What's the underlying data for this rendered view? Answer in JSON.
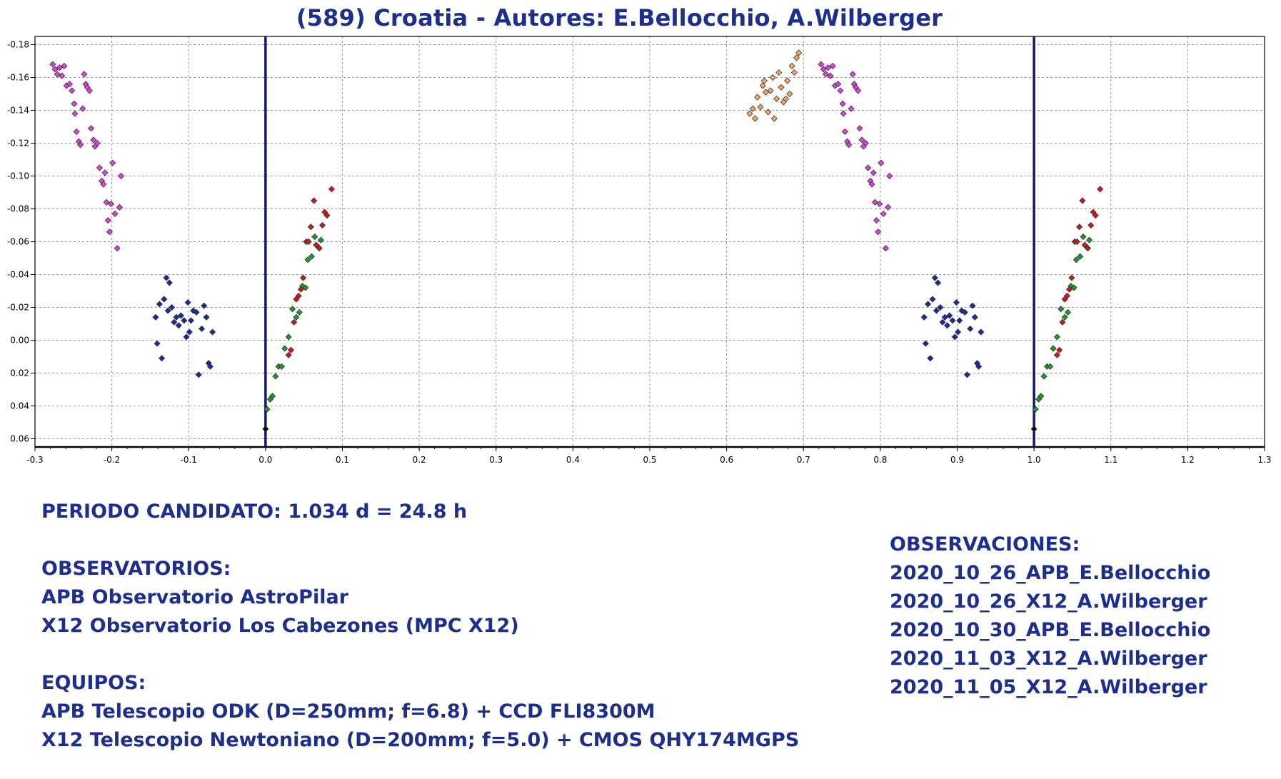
{
  "title": "(589) Croatia - Autores: E.Bellocchio, A.Wilberger",
  "colors": {
    "text": "#1d2e8c",
    "grid": "#999999",
    "phase_line": "#101a6e",
    "magenta": "#e040e0",
    "blue": "#1a2a9c",
    "green": "#1f9a2a",
    "red": "#d01818",
    "orange": "#f0a868"
  },
  "chart_data": {
    "type": "scatter",
    "title": "",
    "xlabel": "",
    "ylabel": "",
    "xlim": [
      -0.3,
      1.3
    ],
    "ylim": [
      0.065,
      -0.185
    ],
    "y_inverted": true,
    "grid": true,
    "x_ticks": [
      "-0.3",
      "-0.2",
      "-0.1",
      "0.0",
      "0.1",
      "0.2",
      "0.3",
      "0.4",
      "0.5",
      "0.6",
      "0.7",
      "0.8",
      "0.9",
      "1.0",
      "1.1",
      "1.2",
      "1.3"
    ],
    "y_ticks": [
      "-0.18",
      "-0.16",
      "-0.14",
      "-0.12",
      "-0.10",
      "-0.08",
      "-0.06",
      "-0.04",
      "-0.02",
      "0.00",
      "0.02",
      "0.04",
      "0.06"
    ],
    "phase_markers": [
      0.0,
      1.0
    ],
    "series": [
      {
        "color": "magenta",
        "points": [
          [
            -0.277,
            -0.168
          ],
          [
            -0.274,
            -0.165
          ],
          [
            -0.271,
            -0.162
          ],
          [
            -0.268,
            -0.166
          ],
          [
            -0.265,
            -0.161
          ],
          [
            -0.262,
            -0.167
          ],
          [
            -0.259,
            -0.155
          ],
          [
            -0.255,
            -0.156
          ],
          [
            -0.252,
            -0.152
          ],
          [
            -0.249,
            -0.144
          ],
          [
            -0.248,
            -0.138
          ],
          [
            -0.246,
            -0.127
          ],
          [
            -0.243,
            -0.121
          ],
          [
            -0.241,
            -0.119
          ],
          [
            -0.238,
            -0.141
          ],
          [
            -0.236,
            -0.162
          ],
          [
            -0.234,
            -0.156
          ],
          [
            -0.232,
            -0.154
          ],
          [
            -0.229,
            -0.152
          ],
          [
            -0.227,
            -0.129
          ],
          [
            -0.224,
            -0.122
          ],
          [
            -0.222,
            -0.118
          ],
          [
            -0.219,
            -0.12
          ],
          [
            -0.216,
            -0.105
          ],
          [
            -0.213,
            -0.097
          ],
          [
            -0.211,
            -0.095
          ],
          [
            -0.209,
            -0.102
          ],
          [
            -0.207,
            -0.084
          ],
          [
            -0.205,
            -0.073
          ],
          [
            -0.203,
            -0.066
          ],
          [
            -0.201,
            -0.083
          ],
          [
            -0.199,
            -0.108
          ],
          [
            -0.196,
            -0.077
          ],
          [
            -0.193,
            -0.056
          ],
          [
            -0.19,
            -0.081
          ],
          [
            -0.188,
            -0.1
          ]
        ]
      },
      {
        "color": "blue",
        "points": [
          [
            -0.143,
            -0.014
          ],
          [
            -0.141,
            0.002
          ],
          [
            -0.138,
            -0.022
          ],
          [
            -0.135,
            0.011
          ],
          [
            -0.132,
            -0.025
          ],
          [
            -0.129,
            -0.038
          ],
          [
            -0.127,
            -0.018
          ],
          [
            -0.125,
            -0.035
          ],
          [
            -0.122,
            -0.02
          ],
          [
            -0.119,
            -0.011
          ],
          [
            -0.116,
            -0.014
          ],
          [
            -0.113,
            -0.009
          ],
          [
            -0.11,
            -0.015
          ],
          [
            -0.106,
            -0.012
          ],
          [
            -0.103,
            -0.002
          ],
          [
            -0.101,
            -0.023
          ],
          [
            -0.099,
            -0.005
          ],
          [
            -0.097,
            -0.012
          ],
          [
            -0.094,
            -0.018
          ],
          [
            -0.09,
            -0.017
          ],
          [
            -0.087,
            0.021
          ],
          [
            -0.083,
            -0.007
          ],
          [
            -0.08,
            -0.021
          ],
          [
            -0.077,
            -0.014
          ],
          [
            -0.074,
            0.014
          ],
          [
            -0.072,
            0.016
          ],
          [
            -0.069,
            -0.005
          ]
        ]
      },
      {
        "color": "green",
        "points": [
          [
            0.002,
            0.042
          ],
          [
            0.006,
            0.036
          ],
          [
            0.009,
            0.034
          ],
          [
            0.013,
            0.022
          ],
          [
            0.017,
            0.016
          ],
          [
            0.021,
            0.016
          ],
          [
            0.025,
            0.005
          ],
          [
            0.03,
            -0.002
          ],
          [
            0.035,
            -0.019
          ],
          [
            0.04,
            -0.014
          ],
          [
            0.044,
            -0.017
          ],
          [
            0.048,
            -0.033
          ],
          [
            0.052,
            -0.032
          ],
          [
            0.055,
            -0.049
          ],
          [
            0.06,
            -0.051
          ],
          [
            0.064,
            -0.063
          ],
          [
            0.068,
            -0.057
          ],
          [
            0.072,
            -0.061
          ]
        ]
      },
      {
        "color": "red",
        "points": [
          [
            0.03,
            0.009
          ],
          [
            0.033,
            0.006
          ],
          [
            0.037,
            -0.011
          ],
          [
            0.04,
            -0.025
          ],
          [
            0.043,
            -0.027
          ],
          [
            0.046,
            -0.031
          ],
          [
            0.049,
            -0.038
          ],
          [
            0.053,
            -0.06
          ],
          [
            0.056,
            -0.06
          ],
          [
            0.059,
            -0.069
          ],
          [
            0.063,
            -0.085
          ],
          [
            0.066,
            -0.058
          ],
          [
            0.07,
            -0.056
          ],
          [
            0.074,
            -0.07
          ],
          [
            0.077,
            -0.078
          ],
          [
            0.08,
            -0.076
          ],
          [
            0.086,
            -0.092
          ]
        ]
      },
      {
        "color": "black",
        "points": [
          [
            0.0,
            0.054
          ]
        ]
      },
      {
        "color": "orange",
        "points": [
          [
            0.63,
            -0.138
          ],
          [
            0.634,
            -0.141
          ],
          [
            0.637,
            -0.135
          ],
          [
            0.64,
            -0.148
          ],
          [
            0.644,
            -0.142
          ],
          [
            0.647,
            -0.155
          ],
          [
            0.649,
            -0.158
          ],
          [
            0.651,
            -0.151
          ],
          [
            0.654,
            -0.139
          ],
          [
            0.657,
            -0.152
          ],
          [
            0.66,
            -0.16
          ],
          [
            0.662,
            -0.135
          ],
          [
            0.665,
            -0.147
          ],
          [
            0.668,
            -0.163
          ],
          [
            0.671,
            -0.154
          ],
          [
            0.674,
            -0.145
          ],
          [
            0.677,
            -0.147
          ],
          [
            0.679,
            -0.158
          ],
          [
            0.682,
            -0.15
          ],
          [
            0.685,
            -0.167
          ],
          [
            0.688,
            -0.163
          ],
          [
            0.691,
            -0.172
          ],
          [
            0.694,
            -0.175
          ]
        ]
      },
      {
        "color": "magenta",
        "points": [
          [
            0.723,
            -0.168
          ],
          [
            0.726,
            -0.165
          ],
          [
            0.729,
            -0.162
          ],
          [
            0.732,
            -0.166
          ],
          [
            0.735,
            -0.161
          ],
          [
            0.738,
            -0.167
          ],
          [
            0.741,
            -0.155
          ],
          [
            0.745,
            -0.156
          ],
          [
            0.748,
            -0.152
          ],
          [
            0.751,
            -0.144
          ],
          [
            0.752,
            -0.138
          ],
          [
            0.754,
            -0.127
          ],
          [
            0.757,
            -0.121
          ],
          [
            0.759,
            -0.119
          ],
          [
            0.762,
            -0.141
          ],
          [
            0.764,
            -0.162
          ],
          [
            0.766,
            -0.156
          ],
          [
            0.768,
            -0.154
          ],
          [
            0.771,
            -0.152
          ],
          [
            0.773,
            -0.129
          ],
          [
            0.776,
            -0.122
          ],
          [
            0.778,
            -0.118
          ],
          [
            0.781,
            -0.12
          ],
          [
            0.784,
            -0.105
          ],
          [
            0.787,
            -0.097
          ],
          [
            0.789,
            -0.095
          ],
          [
            0.791,
            -0.102
          ],
          [
            0.793,
            -0.084
          ],
          [
            0.795,
            -0.073
          ],
          [
            0.797,
            -0.066
          ],
          [
            0.799,
            -0.083
          ],
          [
            0.801,
            -0.108
          ],
          [
            0.804,
            -0.077
          ],
          [
            0.807,
            -0.056
          ],
          [
            0.81,
            -0.081
          ],
          [
            0.812,
            -0.1
          ]
        ]
      },
      {
        "color": "blue",
        "points": [
          [
            0.857,
            -0.014
          ],
          [
            0.859,
            0.002
          ],
          [
            0.862,
            -0.022
          ],
          [
            0.865,
            0.011
          ],
          [
            0.868,
            -0.025
          ],
          [
            0.871,
            -0.038
          ],
          [
            0.873,
            -0.018
          ],
          [
            0.875,
            -0.035
          ],
          [
            0.878,
            -0.02
          ],
          [
            0.881,
            -0.011
          ],
          [
            0.884,
            -0.014
          ],
          [
            0.887,
            -0.009
          ],
          [
            0.89,
            -0.015
          ],
          [
            0.894,
            -0.012
          ],
          [
            0.897,
            -0.002
          ],
          [
            0.899,
            -0.023
          ],
          [
            0.901,
            -0.005
          ],
          [
            0.903,
            -0.012
          ],
          [
            0.906,
            -0.018
          ],
          [
            0.91,
            -0.017
          ],
          [
            0.913,
            0.021
          ],
          [
            0.917,
            -0.007
          ],
          [
            0.92,
            -0.021
          ],
          [
            0.923,
            -0.014
          ],
          [
            0.926,
            0.014
          ],
          [
            0.928,
            0.016
          ],
          [
            0.931,
            -0.005
          ]
        ]
      },
      {
        "color": "green",
        "points": [
          [
            1.002,
            0.042
          ],
          [
            1.006,
            0.036
          ],
          [
            1.009,
            0.034
          ],
          [
            1.013,
            0.022
          ],
          [
            1.017,
            0.016
          ],
          [
            1.021,
            0.016
          ],
          [
            1.025,
            0.005
          ],
          [
            1.03,
            -0.002
          ],
          [
            1.035,
            -0.019
          ],
          [
            1.04,
            -0.014
          ],
          [
            1.044,
            -0.017
          ],
          [
            1.048,
            -0.033
          ],
          [
            1.052,
            -0.032
          ],
          [
            1.055,
            -0.049
          ],
          [
            1.06,
            -0.051
          ],
          [
            1.064,
            -0.063
          ],
          [
            1.068,
            -0.057
          ],
          [
            1.072,
            -0.061
          ]
        ]
      },
      {
        "color": "red",
        "points": [
          [
            1.03,
            0.009
          ],
          [
            1.033,
            0.006
          ],
          [
            1.037,
            -0.011
          ],
          [
            1.04,
            -0.025
          ],
          [
            1.043,
            -0.027
          ],
          [
            1.046,
            -0.031
          ],
          [
            1.049,
            -0.038
          ],
          [
            1.053,
            -0.06
          ],
          [
            1.056,
            -0.06
          ],
          [
            1.059,
            -0.069
          ],
          [
            1.063,
            -0.085
          ],
          [
            1.066,
            -0.058
          ],
          [
            1.07,
            -0.056
          ],
          [
            1.074,
            -0.07
          ],
          [
            1.077,
            -0.078
          ],
          [
            1.08,
            -0.076
          ],
          [
            1.086,
            -0.092
          ]
        ]
      },
      {
        "color": "black",
        "points": [
          [
            1.0,
            0.054
          ]
        ]
      }
    ]
  },
  "info": {
    "periodo": "PERIODO CANDIDATO: 1.034 d = 24.8 h",
    "observatorios_heading": "OBSERVATORIOS:",
    "observatorio_1": "APB Observatorio AstroPilar",
    "observatorio_2": "X12 Observatorio Los Cabezones (MPC X12)",
    "equipos_heading": "EQUIPOS:",
    "equipo_1": "APB Telescopio ODK (D=250mm; f=6.8) + CCD FLI8300M",
    "equipo_2": "X12 Telescopio Newtoniano (D=200mm; f=5.0) + CMOS QHY174MGPS",
    "observaciones_heading": "OBSERVACIONES:",
    "observaciones": [
      "2020_10_26_APB_E.Bellocchio",
      "2020_10_26_X12_A.Wilberger",
      "2020_10_30_APB_E.Bellocchio",
      "2020_11_03_X12_A.Wilberger",
      "2020_11_05_X12_A.Wilberger"
    ]
  }
}
